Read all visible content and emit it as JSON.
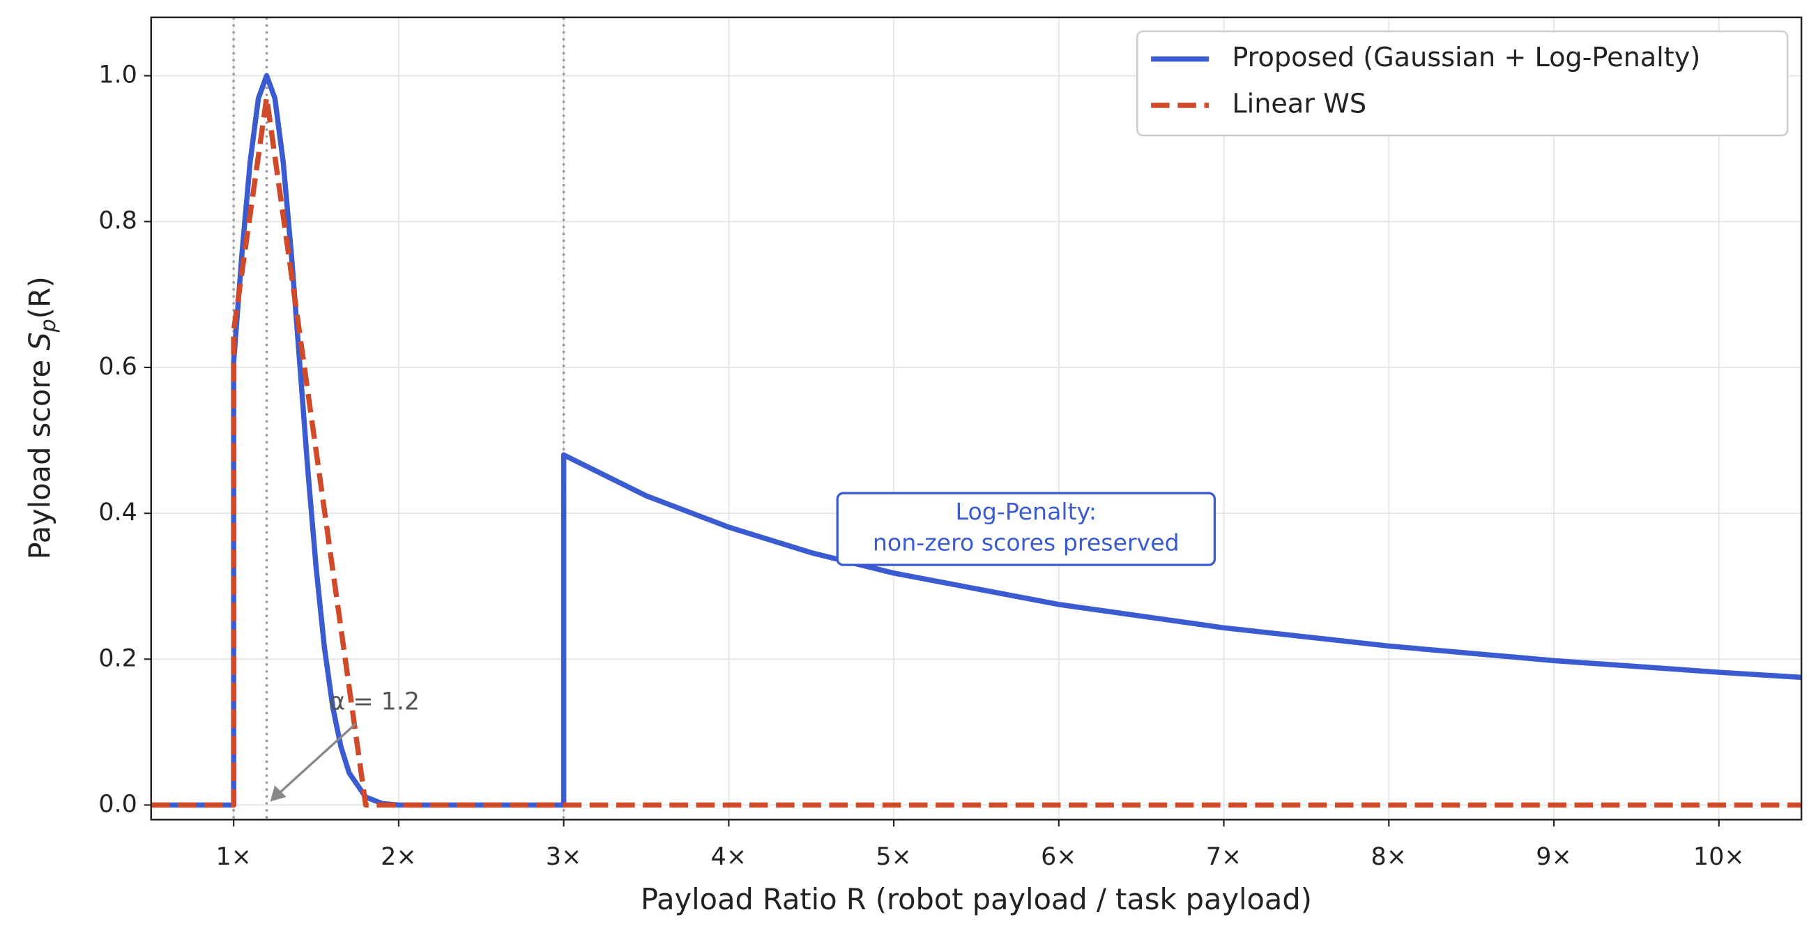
{
  "chart_data": {
    "type": "line",
    "xlabel": "Payload Ratio R (robot payload / task payload)",
    "ylabel": {
      "text": "Payload score",
      "math": "S",
      "sub": "p",
      "tail": "(R)"
    },
    "xlim": [
      0.5,
      10.5
    ],
    "ylim": [
      -0.02,
      1.08
    ],
    "xticks": [
      {
        "value": 1,
        "label": "1×"
      },
      {
        "value": 2,
        "label": "2×"
      },
      {
        "value": 3,
        "label": "3×"
      },
      {
        "value": 4,
        "label": "4×"
      },
      {
        "value": 5,
        "label": "5×"
      },
      {
        "value": 6,
        "label": "6×"
      },
      {
        "value": 7,
        "label": "7×"
      },
      {
        "value": 8,
        "label": "8×"
      },
      {
        "value": 9,
        "label": "9×"
      },
      {
        "value": 10,
        "label": "10×"
      }
    ],
    "yticks": [
      {
        "value": 0,
        "label": "0.0"
      },
      0.2,
      0.4,
      0.6,
      0.8,
      {
        "value": 1,
        "label": "1.0"
      }
    ],
    "grid": true,
    "legend": "upper right",
    "vlines": [
      1,
      1.2,
      3
    ],
    "series": [
      {
        "name": "Proposed (Gaussian + Log-Penalty)",
        "color": "#3b5bd0",
        "dash": false,
        "x": [
          0.5,
          1.0,
          1.0,
          1.05,
          1.1,
          1.15,
          1.2,
          1.25,
          1.3,
          1.35,
          1.4,
          1.45,
          1.5,
          1.55,
          1.6,
          1.65,
          1.7,
          1.8,
          1.9,
          2.0,
          3.0,
          3.0,
          3.5,
          4,
          4.5,
          5,
          6,
          7,
          8,
          9,
          10,
          10.5
        ],
        "values": [
          0,
          0,
          0.607,
          0.755,
          0.882,
          0.969,
          1,
          0.969,
          0.882,
          0.755,
          0.607,
          0.458,
          0.325,
          0.216,
          0.135,
          0.08,
          0.044,
          0.011,
          0.002,
          0,
          0,
          0.48,
          0.424,
          0.381,
          0.346,
          0.318,
          0.275,
          0.243,
          0.218,
          0.198,
          0.182,
          0.175
        ]
      },
      {
        "name": "Linear WS",
        "color": "#d04a2a",
        "dash": true,
        "x": [
          0.5,
          1.0,
          1.0,
          1.2,
          1.8,
          10.5
        ],
        "values": [
          0,
          0,
          0.65,
          0.97,
          0,
          0
        ]
      }
    ],
    "annotations": [
      {
        "text": "α = 1.2",
        "x": 1.2,
        "y": 0
      },
      {
        "text": [
          "Log-Penalty:",
          "non-zero scores preserved"
        ]
      }
    ]
  }
}
